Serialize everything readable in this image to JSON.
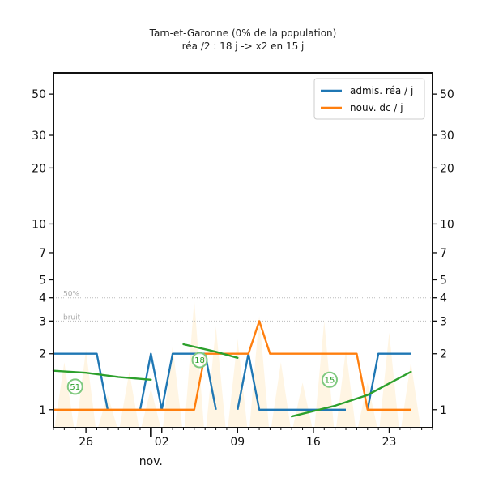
{
  "chart_data": {
    "type": "line",
    "title": "Tarn-et-Garonne (0% de la population)",
    "subtitle": "réa /2 : 18 j -> x2 en 15 j",
    "x_tick_labels": [
      "26",
      "02",
      "09",
      "16",
      "23"
    ],
    "x_tick_days": [
      -5,
      2,
      9,
      16,
      23
    ],
    "month_label": "nov.",
    "month_day": 1,
    "xlim": [
      -8,
      27
    ],
    "ylim": [
      0.8,
      65
    ],
    "y_scale": "log",
    "y_ticks": [
      1,
      2,
      3,
      4,
      5,
      7,
      10,
      20,
      30,
      50
    ],
    "y_tick_labels": [
      "1",
      "2",
      "3",
      "4",
      "5",
      "7",
      "10",
      "20",
      "30",
      "50"
    ],
    "reference_lines": [
      {
        "label": "50%",
        "y": 4.0
      },
      {
        "label": "bruit",
        "y": 3.0
      }
    ],
    "series": [
      {
        "name": "admis. réa / j",
        "color": "#1f77b4",
        "points": [
          [
            -8,
            2
          ],
          [
            -4,
            2
          ],
          [
            -3,
            1
          ],
          [
            null,
            null
          ],
          [
            0,
            1
          ],
          [
            1,
            2
          ],
          [
            2,
            1
          ],
          [
            3,
            2
          ],
          [
            6,
            2
          ],
          [
            7,
            1
          ],
          [
            null,
            null
          ],
          [
            9,
            1
          ],
          [
            10,
            2
          ],
          [
            11,
            1
          ],
          [
            15,
            1
          ],
          [
            19,
            1
          ],
          [
            null,
            null
          ],
          [
            21,
            1
          ],
          [
            22,
            2
          ],
          [
            25,
            2
          ]
        ]
      },
      {
        "name": "nouv. dc / j",
        "color": "#ff7f0e",
        "points": [
          [
            -8,
            1
          ],
          [
            -6,
            1
          ],
          [
            -2,
            1
          ],
          [
            3,
            1
          ],
          [
            5,
            1
          ],
          [
            6,
            2
          ],
          [
            8,
            2
          ],
          [
            10,
            2
          ],
          [
            11,
            3
          ],
          [
            12,
            2
          ],
          [
            16,
            2
          ],
          [
            18,
            2
          ],
          [
            20,
            2
          ],
          [
            21,
            1
          ],
          [
            25,
            1
          ]
        ]
      }
    ],
    "trend_lines": {
      "color": "#2ca02c",
      "segments": [
        [
          [
            -8,
            1.62
          ],
          [
            -5,
            1.58
          ],
          [
            -2,
            1.5
          ],
          [
            1,
            1.45
          ]
        ],
        [
          [
            4,
            2.25
          ],
          [
            7,
            2.05
          ],
          [
            9,
            1.9
          ]
        ],
        [
          [
            14,
            0.92
          ],
          [
            18,
            1.05
          ],
          [
            21,
            1.2
          ],
          [
            25,
            1.6
          ]
        ]
      ]
    },
    "badges": [
      {
        "label": "51",
        "x": -6.0,
        "y": 1.33
      },
      {
        "label": "18",
        "x": 5.5,
        "y": 1.85
      },
      {
        "label": "15",
        "x": 17.5,
        "y": 1.45
      }
    ],
    "background_bars": {
      "color": "#ffe8c2",
      "days": [
        -7,
        -5,
        -3,
        -1,
        1,
        3,
        5,
        7,
        9,
        11,
        13,
        15,
        17,
        19,
        21,
        23,
        25
      ],
      "values": [
        1.8,
        2.1,
        1.2,
        1.6,
        1.3,
        2.2,
        3.9,
        2.8,
        2.4,
        3.2,
        1.8,
        1.4,
        3.0,
        2.1,
        1.4,
        2.6,
        1.8
      ]
    },
    "legend": {
      "position": "top-right",
      "entries": [
        {
          "label": "admis. réa / j",
          "color": "#1f77b4"
        },
        {
          "label": "nouv. dc / j",
          "color": "#ff7f0e"
        }
      ]
    },
    "grid": false
  }
}
